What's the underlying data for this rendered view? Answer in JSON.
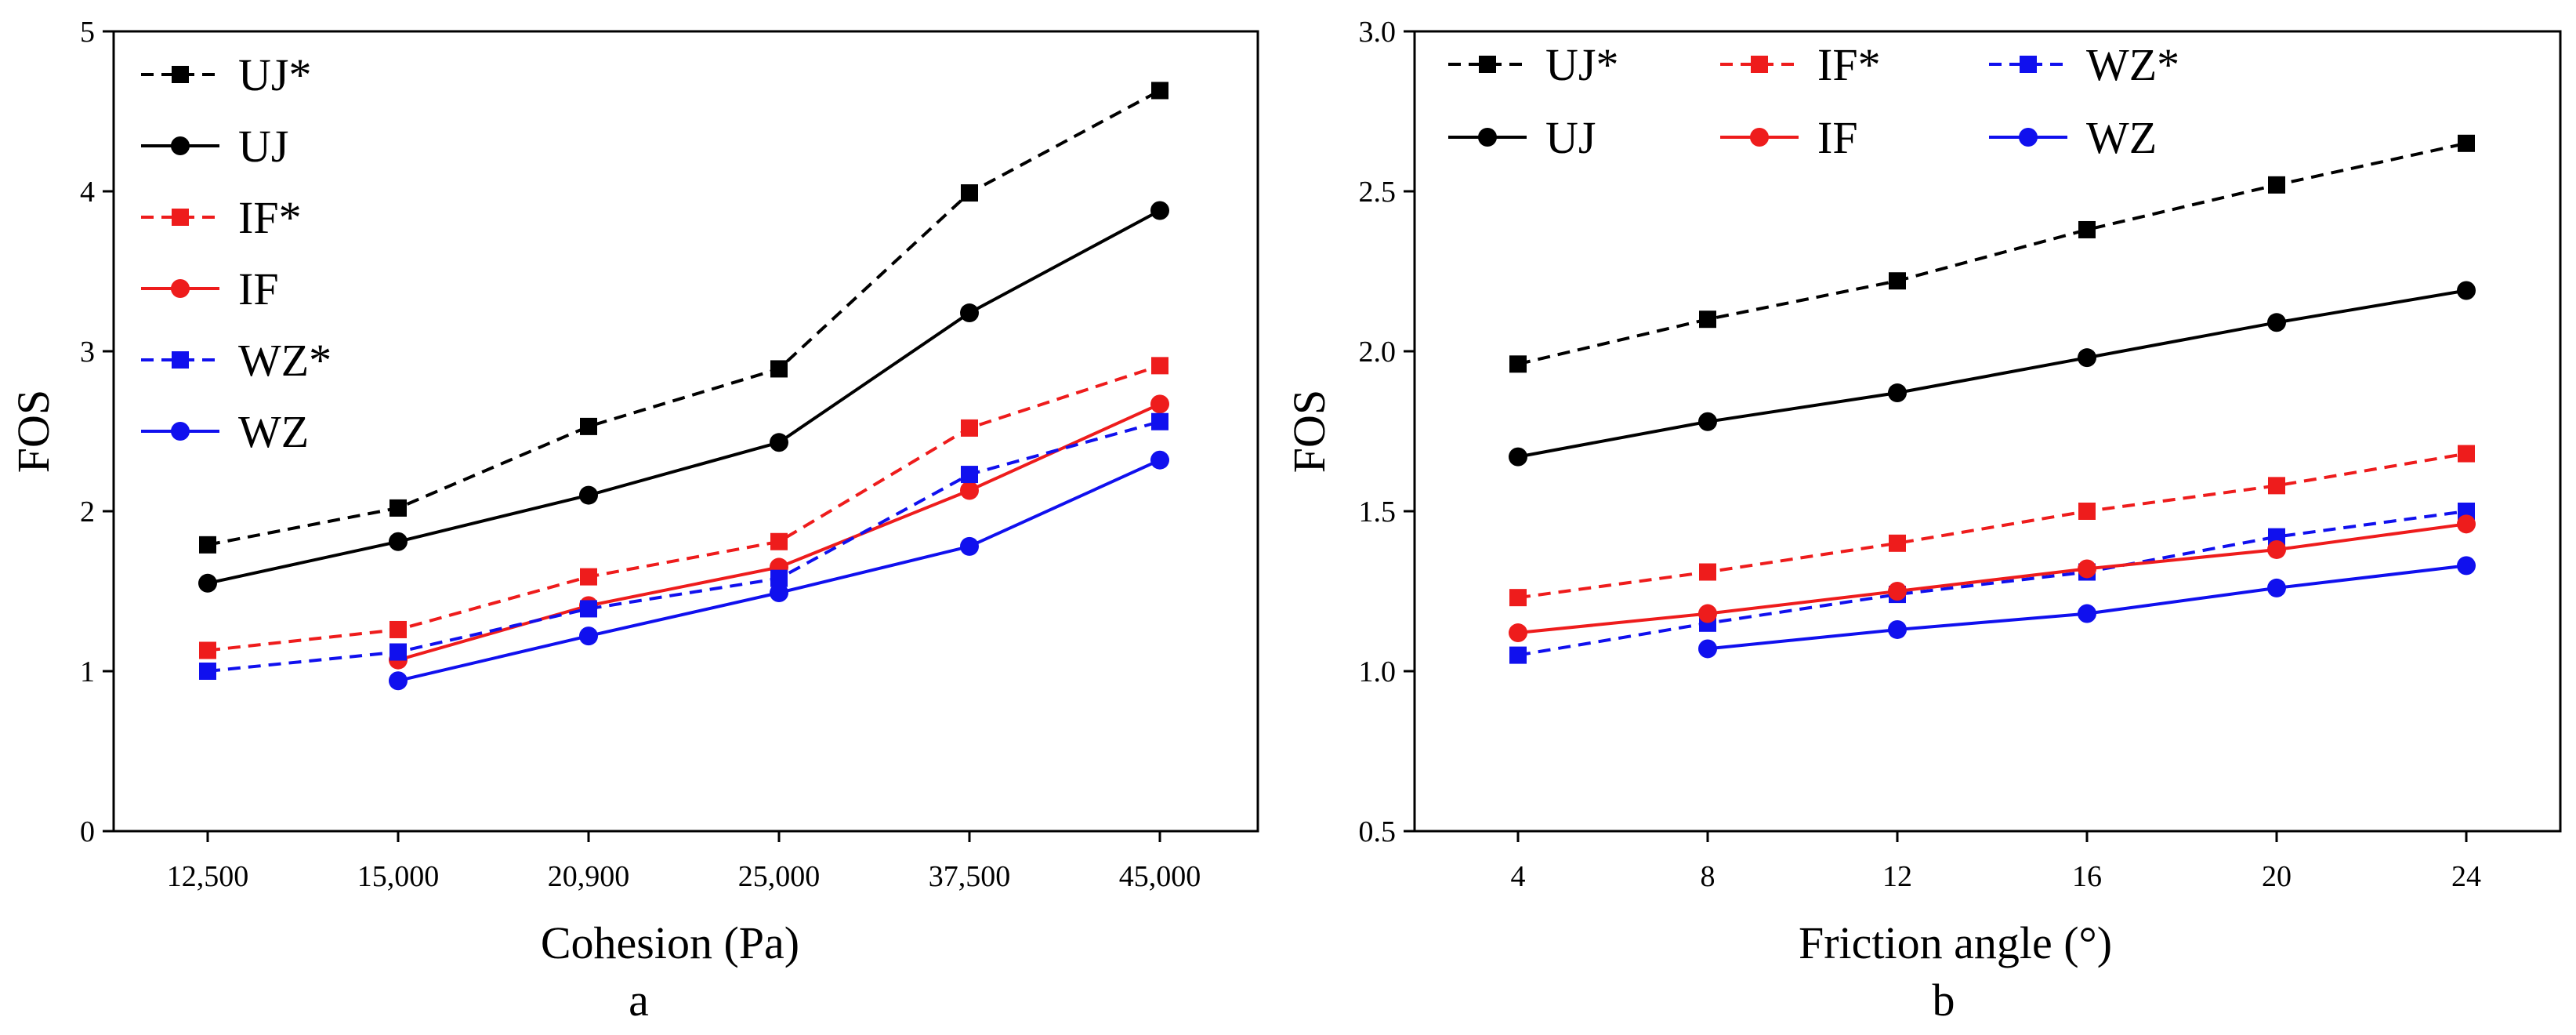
{
  "chart_data": [
    {
      "type": "line",
      "panel_label": "a",
      "xlabel": "Cohesion (Pa)",
      "ylabel": "FOS",
      "categories": [
        "12,500",
        "15,000",
        "20,900",
        "25,000",
        "37,500",
        "45,000"
      ],
      "ylim": [
        0,
        5
      ],
      "yticks": [
        "0",
        "1",
        "2",
        "3",
        "4",
        "5"
      ],
      "legend_position": "top-left",
      "series": [
        {
          "name": "UJ*",
          "color": "#000000",
          "dashed": true,
          "marker": "square",
          "values": [
            1.79,
            2.02,
            2.53,
            2.89,
            3.99,
            4.63
          ]
        },
        {
          "name": "UJ",
          "color": "#000000",
          "dashed": false,
          "marker": "circle",
          "values": [
            1.55,
            1.81,
            2.1,
            2.43,
            3.24,
            3.88
          ]
        },
        {
          "name": "IF*",
          "color": "#ee1c1c",
          "dashed": true,
          "marker": "square",
          "values": [
            1.13,
            1.26,
            1.59,
            1.81,
            2.52,
            2.91
          ]
        },
        {
          "name": "IF",
          "color": "#ee1c1c",
          "dashed": false,
          "marker": "circle",
          "values": [
            null,
            1.07,
            1.41,
            1.65,
            2.13,
            2.67
          ]
        },
        {
          "name": "WZ*",
          "color": "#1010ee",
          "dashed": true,
          "marker": "square",
          "values": [
            1.0,
            1.12,
            1.39,
            1.58,
            2.23,
            2.56
          ]
        },
        {
          "name": "WZ",
          "color": "#1010ee",
          "dashed": false,
          "marker": "circle",
          "values": [
            null,
            0.94,
            1.22,
            1.49,
            1.78,
            2.32
          ]
        }
      ]
    },
    {
      "type": "line",
      "panel_label": "b",
      "xlabel": "Friction angle (°)",
      "ylabel": "FOS",
      "categories": [
        "4",
        "8",
        "12",
        "16",
        "20",
        "24"
      ],
      "ylim": [
        0.5,
        3.0
      ],
      "yticks": [
        "0.5",
        "1.0",
        "1.5",
        "2.0",
        "2.5",
        "3.0"
      ],
      "legend_position": "top",
      "series": [
        {
          "name": "UJ*",
          "color": "#000000",
          "dashed": true,
          "marker": "square",
          "values": [
            1.96,
            2.1,
            2.22,
            2.38,
            2.52,
            2.65
          ]
        },
        {
          "name": "IF*",
          "color": "#ee1c1c",
          "dashed": true,
          "marker": "square",
          "values": [
            1.23,
            1.31,
            1.4,
            1.5,
            1.58,
            1.68
          ]
        },
        {
          "name": "WZ*",
          "color": "#1010ee",
          "dashed": true,
          "marker": "square",
          "values": [
            1.05,
            1.15,
            1.24,
            1.31,
            1.42,
            1.5
          ]
        },
        {
          "name": "UJ",
          "color": "#000000",
          "dashed": false,
          "marker": "circle",
          "values": [
            1.67,
            1.78,
            1.87,
            1.98,
            2.09,
            2.19
          ]
        },
        {
          "name": "IF",
          "color": "#ee1c1c",
          "dashed": false,
          "marker": "circle",
          "values": [
            1.12,
            1.18,
            1.25,
            1.32,
            1.38,
            1.46
          ]
        },
        {
          "name": "WZ",
          "color": "#1010ee",
          "dashed": false,
          "marker": "circle",
          "values": [
            null,
            1.07,
            1.13,
            1.18,
            1.26,
            1.33
          ]
        }
      ]
    }
  ]
}
